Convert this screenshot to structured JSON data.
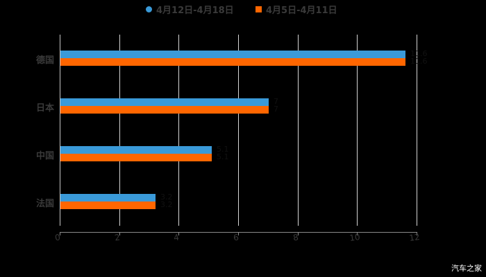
{
  "chart_data": {
    "type": "bar",
    "orientation": "horizontal",
    "title": "",
    "categories": [
      "德国",
      "日本",
      "中国",
      "法国"
    ],
    "series": [
      {
        "name": "4月12日-4月18日",
        "color": "#3a9ad9",
        "values": [
          11.6,
          7.0,
          5.1,
          3.2
        ]
      },
      {
        "name": "4月5日-4月11日",
        "color": "#ff6600",
        "values": [
          11.6,
          7.0,
          5.1,
          3.2
        ]
      }
    ],
    "xlabel": "",
    "ylabel": "",
    "xlim": [
      0,
      12
    ],
    "x_ticks": [
      "0",
      "2",
      "4",
      "6",
      "8",
      "10",
      "12"
    ],
    "grid": true,
    "legend_position": "top"
  },
  "legend": [
    {
      "label": "4月12日-4月18日",
      "color": "#3a9ad9",
      "shape": "circle"
    },
    {
      "label": "4月5日-4月11日",
      "color": "#ff6600",
      "shape": "square"
    }
  ],
  "watermark": "汽车之家"
}
